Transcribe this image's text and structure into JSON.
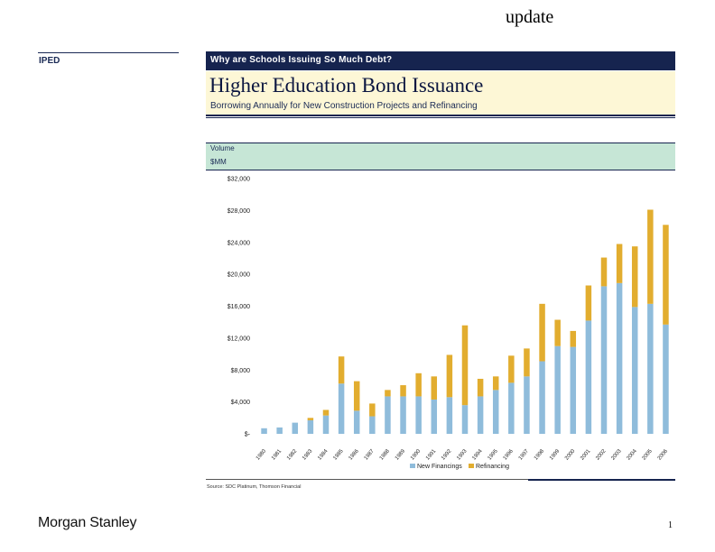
{
  "header": {
    "update_label": "update",
    "section_label": "IPED"
  },
  "banner": {
    "text": "Why are Schools Issuing So Much Debt?"
  },
  "title": {
    "main": "Higher Education Bond Issuance",
    "subtitle": "Borrowing Annually for New Construction Projects and Refinancing"
  },
  "axis_header": {
    "volume_label": "Volume",
    "unit_label": "$MM"
  },
  "footer": {
    "source": "Source:    SDC Platinum, Thomson Financial",
    "logo": "Morgan Stanley",
    "page_number": "1"
  },
  "colors": {
    "new_financings": "#8fbcdb",
    "refinancing": "#e2ad2f",
    "navy": "#16244f"
  },
  "chart_data": {
    "type": "bar",
    "stacked": true,
    "categories": [
      "1980",
      "1981",
      "1982",
      "1983",
      "1984",
      "1985",
      "1986",
      "1987",
      "1988",
      "1989",
      "1990",
      "1991",
      "1992",
      "1993",
      "1994",
      "1995",
      "1996",
      "1997",
      "1998",
      "1999",
      "2000",
      "2001",
      "2002",
      "2003",
      "2004",
      "2005",
      "2006"
    ],
    "series": [
      {
        "name": "New Financings",
        "values": [
          700,
          800,
          1400,
          1700,
          2300,
          6300,
          2900,
          2200,
          4700,
          4700,
          4700,
          4300,
          4600,
          3600,
          4700,
          5500,
          6400,
          7200,
          9100,
          11000,
          10900,
          14200,
          18500,
          18900,
          15900,
          16300,
          13700
        ]
      },
      {
        "name": "Refinancing",
        "values": [
          0,
          0,
          0,
          300,
          700,
          3400,
          3700,
          1600,
          800,
          1400,
          2900,
          2900,
          5300,
          10000,
          2200,
          1700,
          3400,
          3500,
          7200,
          3300,
          2000,
          4400,
          3600,
          4900,
          7600,
          11800,
          12500
        ]
      }
    ],
    "y_ticks": [
      "$-",
      "$4,000",
      "$8,000",
      "$12,000",
      "$16,000",
      "$20,000",
      "$24,000",
      "$28,000",
      "$32,000"
    ],
    "ylim": [
      0,
      32000
    ],
    "xlabel": "",
    "ylabel": "Volume",
    "legend": {
      "position": "bottom",
      "entries": [
        "New Financings",
        "Refinancing"
      ]
    },
    "grid": false
  }
}
